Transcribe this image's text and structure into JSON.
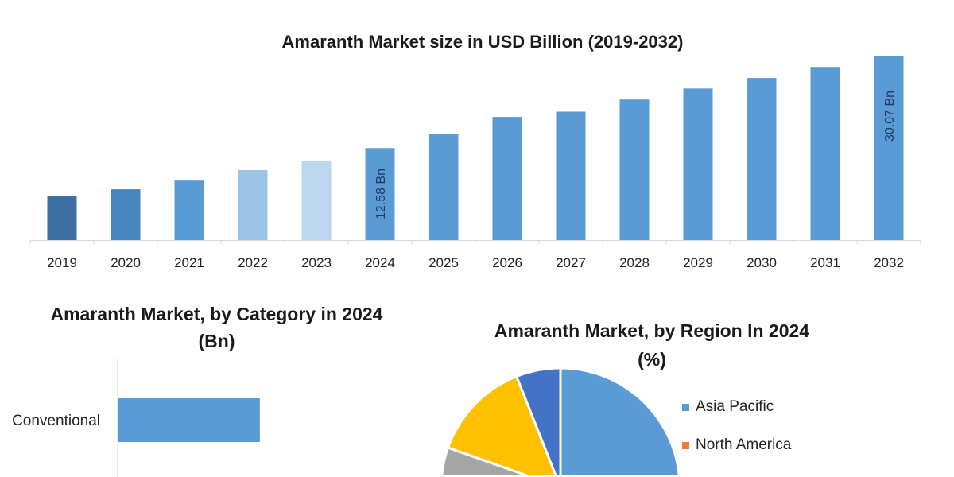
{
  "chart_data": [
    {
      "type": "bar",
      "title": "Amaranth Market size in USD Billion (2019-2032)",
      "categories": [
        "2019",
        "2020",
        "2021",
        "2022",
        "2023",
        "2024",
        "2025",
        "2026",
        "2027",
        "2028",
        "2029",
        "2030",
        "2031",
        "2032"
      ],
      "values": [
        3.4,
        4.75,
        6.4,
        8.4,
        10.2,
        12.58,
        15.3,
        18.5,
        19.5,
        21.8,
        23.9,
        25.9,
        28.0,
        30.07
      ],
      "colors": [
        "#3d6fa3",
        "#4a86c0",
        "#5b9bd5",
        "#9dc3e6",
        "#bdd7ee",
        "#5b9bd5",
        "#5b9bd5",
        "#5b9bd5",
        "#5b9bd5",
        "#5b9bd5",
        "#5b9bd5",
        "#5b9bd5",
        "#5b9bd5",
        "#5b9bd5"
      ],
      "data_labels": {
        "2024": "12.58 Bn",
        "2032": "30.07 Bn"
      },
      "xlabel": "",
      "ylabel": "",
      "ylim": [
        -4.9,
        30.9
      ],
      "grid": false
    },
    {
      "type": "bar",
      "orientation": "horizontal",
      "title": "Amaranth Market, by Category in 2024 (Bn)",
      "title_lines": [
        "Amaranth Market, by Category in 2024",
        "(Bn)"
      ],
      "categories": [
        "Conventional"
      ],
      "values": [
        8.3
      ],
      "xlim": [
        0,
        14
      ],
      "color": "#5b9bd5"
    },
    {
      "type": "pie",
      "title": "Amaranth Market, by Region In 2024 (%)",
      "title_lines": [
        "Amaranth Market, by Region In 2024",
        "(%)"
      ],
      "slices": [
        {
          "name": "Asia Pacific",
          "value": 45,
          "color": "#5b9bd5"
        },
        {
          "name": "North America",
          "value": 20,
          "color": "#ed7d31"
        },
        {
          "value": 15.4,
          "color": "#a5a5a5"
        },
        {
          "value": 13.6,
          "color": "#ffc000"
        },
        {
          "value": 6,
          "color": "#4472c4"
        }
      ],
      "legend": [
        "Asia Pacific",
        "North America"
      ],
      "legend_position": "right"
    }
  ]
}
